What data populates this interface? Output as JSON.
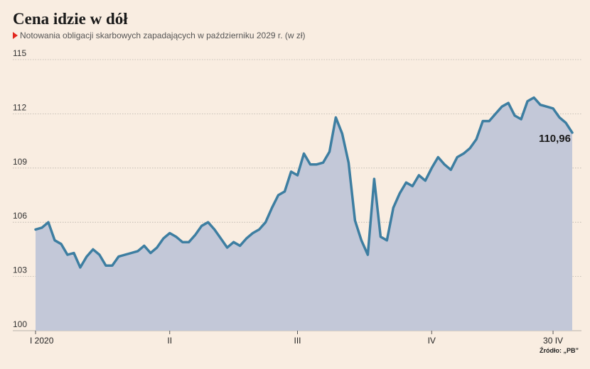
{
  "title": "Cena idzie w dół",
  "subtitle": "Notowania obligacji skarbowych zapadających w październiku 2029 r. (w zł)",
  "source": "Źródło: „PB”",
  "colors": {
    "background": "#f9ede1",
    "line": "#3d7ea1",
    "area": "#c3c8d8",
    "grid": "#b8b2aa",
    "marker": "#e2261d"
  },
  "chart_data": {
    "type": "area",
    "title": "Cena idzie w dół",
    "subtitle": "Notowania obligacji skarbowych zapadających w październiku 2029 r. (w zł)",
    "ylim": [
      100,
      115
    ],
    "yticks": [
      100,
      103,
      106,
      109,
      112,
      115
    ],
    "ytick_labels": [
      "100",
      "103",
      "106",
      "109",
      "112",
      "115"
    ],
    "xlabels": [
      {
        "label": "I 2020",
        "pos": 0
      },
      {
        "label": "II",
        "pos": 21
      },
      {
        "label": "III",
        "pos": 41
      },
      {
        "label": "IV",
        "pos": 62
      },
      {
        "label": "30 IV",
        "pos": 81
      }
    ],
    "last_value_label": "110,96",
    "grid": true,
    "values": [
      105.6,
      105.7,
      106.0,
      105.0,
      104.8,
      104.2,
      104.3,
      103.5,
      104.1,
      104.5,
      104.2,
      103.6,
      103.6,
      104.1,
      104.2,
      104.3,
      104.4,
      104.7,
      104.3,
      104.6,
      105.1,
      105.4,
      105.2,
      104.9,
      104.9,
      105.3,
      105.8,
      106.0,
      105.6,
      105.1,
      104.6,
      104.9,
      104.7,
      105.1,
      105.4,
      105.6,
      106.0,
      106.8,
      107.5,
      107.7,
      108.8,
      108.6,
      109.8,
      109.2,
      109.2,
      109.3,
      109.9,
      111.8,
      110.9,
      109.3,
      106.1,
      105.0,
      104.2,
      108.4,
      105.2,
      105.0,
      106.8,
      107.6,
      108.2,
      108.0,
      108.6,
      108.3,
      109.0,
      109.6,
      109.2,
      108.9,
      109.6,
      109.8,
      110.1,
      110.6,
      111.6,
      111.6,
      112.0,
      112.4,
      112.6,
      111.9,
      111.7,
      112.7,
      112.9,
      112.5,
      112.4,
      112.3,
      111.8,
      111.5,
      110.96
    ]
  }
}
